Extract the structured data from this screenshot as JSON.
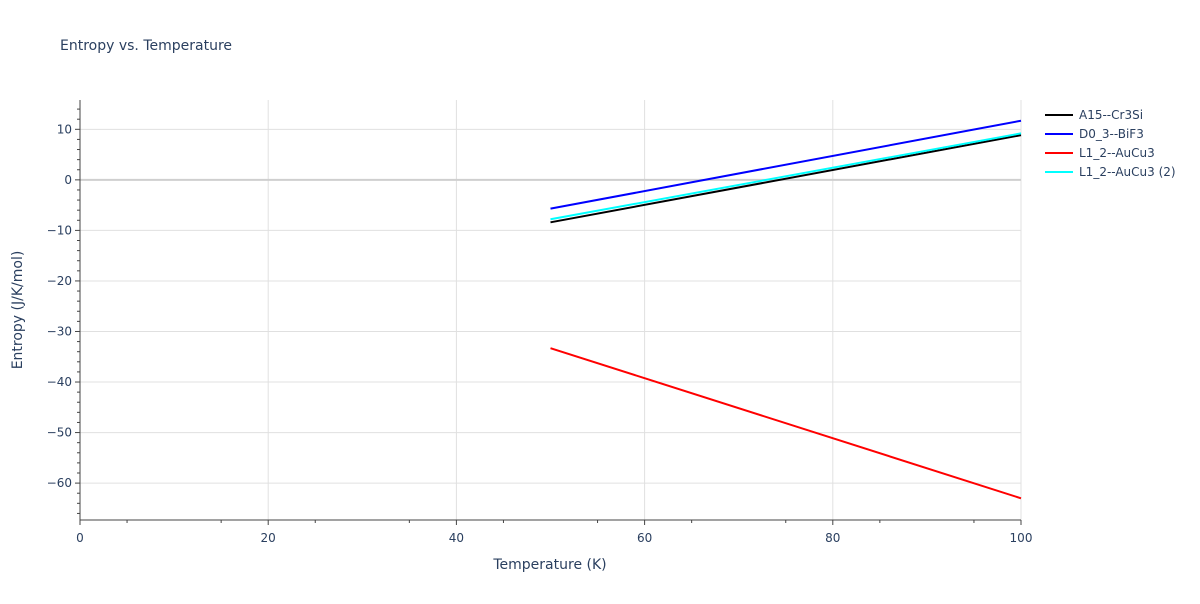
{
  "chart_data": {
    "type": "line",
    "title": "Entropy vs. Temperature",
    "xlabel": "Temperature (K)",
    "ylabel": "Entropy (J/K/mol)",
    "xlim": [
      0,
      100
    ],
    "ylim": [
      -67.3,
      15.8
    ],
    "xticks": [
      0,
      20,
      40,
      60,
      80,
      100
    ],
    "yticks": [
      10,
      0,
      -10,
      -20,
      -30,
      -40,
      -50,
      -60
    ],
    "grid": true,
    "legend_position": "right",
    "series": [
      {
        "name": "A15--Cr3Si",
        "color": "#000000",
        "x": [
          50,
          100
        ],
        "y": [
          -8.4,
          8.85
        ]
      },
      {
        "name": "D0_3--BiF3",
        "color": "#0000ff",
        "x": [
          50,
          100
        ],
        "y": [
          -5.7,
          11.7
        ]
      },
      {
        "name": "L1_2--AuCu3",
        "color": "#ff0000",
        "x": [
          50,
          100
        ],
        "y": [
          -33.3,
          -63.0
        ]
      },
      {
        "name": "L1_2--AuCu3 (2)",
        "color": "#00ffff",
        "x": [
          50,
          100
        ],
        "y": [
          -7.8,
          9.2
        ]
      }
    ]
  }
}
